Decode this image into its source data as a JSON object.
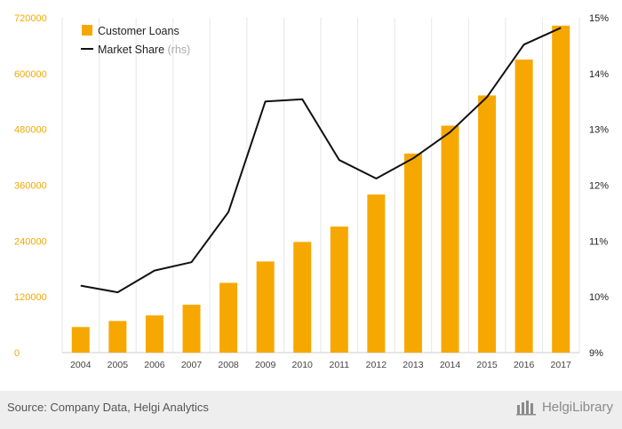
{
  "chart_data": {
    "type": "bar",
    "categories": [
      "2004",
      "2005",
      "2006",
      "2007",
      "2008",
      "2009",
      "2010",
      "2011",
      "2012",
      "2013",
      "2014",
      "2015",
      "2016",
      "2017"
    ],
    "series": [
      {
        "name": "Customer Loans",
        "type": "bar",
        "axis": "left",
        "color": "#f7a800",
        "values": [
          55000,
          68000,
          80000,
          103000,
          150000,
          196000,
          238000,
          271000,
          340000,
          428000,
          488000,
          553000,
          630000,
          703000
        ]
      },
      {
        "name": "Market Share",
        "type": "line",
        "axis": "right",
        "color": "#111111",
        "values": [
          10.2,
          10.08,
          10.47,
          10.62,
          11.52,
          13.5,
          13.54,
          12.45,
          12.12,
          12.48,
          12.95,
          13.58,
          14.52,
          14.82
        ]
      }
    ],
    "legend": {
      "items": [
        {
          "label": "Customer Loans",
          "suffix": ""
        },
        {
          "label": "Market Share",
          "suffix": "(rhs)"
        }
      ],
      "placement": "top-left"
    },
    "y_left": {
      "ticks": [
        "720000",
        "600000",
        "480000",
        "360000",
        "240000",
        "120000",
        "0"
      ],
      "ylim": [
        0,
        720000
      ]
    },
    "y_right": {
      "ticks": [
        "15%",
        "14%",
        "13%",
        "12%",
        "11%",
        "10%",
        "9%"
      ],
      "ylim": [
        9,
        15
      ]
    },
    "grid": "vertical"
  },
  "footer": {
    "source": "Source: Company Data, Helgi Analytics",
    "brand": "HelgiLibrary"
  }
}
